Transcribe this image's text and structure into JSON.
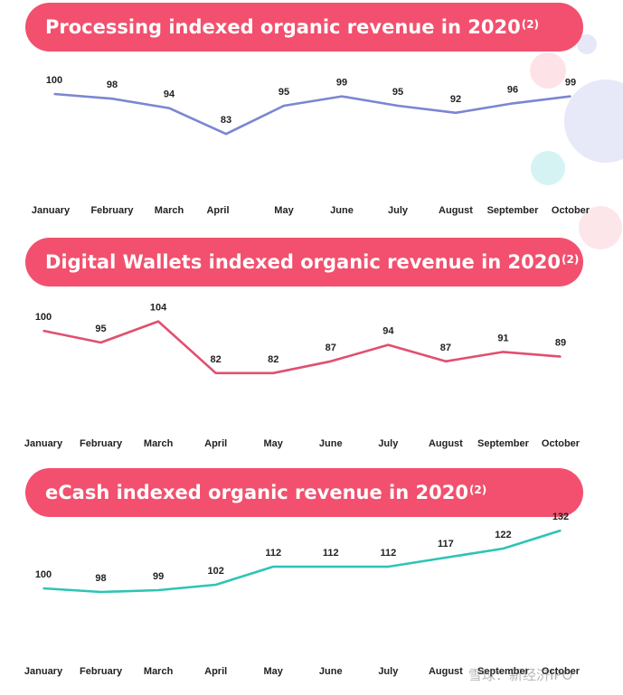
{
  "chart_data": [
    {
      "type": "line",
      "title": "Processing indexed organic revenue in 2020",
      "title_superscript": "(2)",
      "categories": [
        "January",
        "February",
        "March",
        "April",
        "May",
        "June",
        "July",
        "August",
        "September",
        "October"
      ],
      "series": [
        {
          "values": [
            100,
            98,
            94,
            83,
            95,
            99,
            95,
            92,
            96,
            99
          ]
        }
      ],
      "color": "#7b86d1",
      "ylim": [
        60,
        110
      ],
      "grid": false
    },
    {
      "type": "line",
      "title": "Digital Wallets indexed organic revenue in 2020",
      "title_superscript": "(2)",
      "categories": [
        "January",
        "February",
        "March",
        "April",
        "May",
        "June",
        "July",
        "August",
        "September",
        "October"
      ],
      "series": [
        {
          "values": [
            100,
            95,
            104,
            82,
            82,
            87,
            94,
            87,
            91,
            89
          ]
        }
      ],
      "color": "#e0506e",
      "ylim": [
        60,
        110
      ],
      "grid": false
    },
    {
      "type": "line",
      "title": "eCash indexed organic revenue in 2020",
      "title_superscript": "(2)",
      "categories": [
        "January",
        "February",
        "March",
        "April",
        "May",
        "June",
        "July",
        "August",
        "September",
        "October"
      ],
      "series": [
        {
          "values": [
            100,
            98,
            99,
            102,
            112,
            112,
            112,
            117,
            122,
            132
          ]
        }
      ],
      "color": "#2ec4b6",
      "ylim": [
        60,
        140
      ],
      "grid": false
    }
  ],
  "watermark": "雪球：新经济IPO",
  "colors": {
    "banner": "#f2506e",
    "text": "#222222"
  }
}
